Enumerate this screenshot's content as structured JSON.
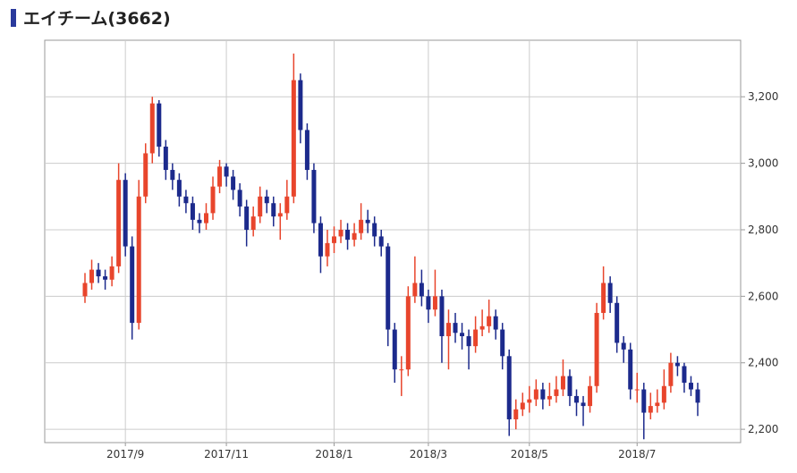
{
  "chart_data": {
    "type": "candlestick",
    "title": "エイチーム(3662)",
    "up_color": "#e8452c",
    "down_color": "#1c2a8c",
    "grid": true,
    "ylim": [
      2160,
      3370
    ],
    "yticks": [
      {
        "value": 2200,
        "label": "2,200"
      },
      {
        "value": 2400,
        "label": "2,400"
      },
      {
        "value": 2600,
        "label": "2,600"
      },
      {
        "value": 2800,
        "label": "2,800"
      },
      {
        "value": 3000,
        "label": "3,000"
      },
      {
        "value": 3200,
        "label": "3,200"
      }
    ],
    "categories": [
      null,
      null,
      null,
      null,
      null,
      null,
      "2017/9",
      null,
      null,
      null,
      null,
      null,
      null,
      null,
      null,
      null,
      null,
      null,
      null,
      null,
      null,
      "2017/11",
      null,
      null,
      null,
      null,
      null,
      null,
      null,
      null,
      null,
      null,
      null,
      null,
      null,
      null,
      null,
      "2018/1",
      null,
      null,
      null,
      null,
      null,
      null,
      null,
      null,
      null,
      null,
      null,
      null,
      null,
      "2018/3",
      null,
      null,
      null,
      null,
      null,
      null,
      null,
      null,
      null,
      null,
      null,
      null,
      null,
      null,
      "2018/5",
      null,
      null,
      null,
      null,
      null,
      null,
      null,
      null,
      null,
      null,
      null,
      null,
      null,
      null,
      null,
      "2018/7",
      null,
      null,
      null,
      null,
      null,
      null,
      null,
      null,
      null
    ],
    "open": [
      2600,
      2640,
      2680,
      2660,
      2650,
      2690,
      2950,
      2750,
      2520,
      2900,
      3030,
      3180,
      3050,
      2980,
      2950,
      2900,
      2880,
      2830,
      2820,
      2850,
      2930,
      2990,
      2960,
      2920,
      2870,
      2800,
      2840,
      2900,
      2880,
      2840,
      2850,
      2900,
      3250,
      3100,
      2980,
      2820,
      2720,
      2760,
      2780,
      2800,
      2770,
      2790,
      2830,
      2820,
      2780,
      2750,
      2500,
      2380,
      2380,
      2600,
      2640,
      2600,
      2560,
      2600,
      2480,
      2520,
      2490,
      2480,
      2450,
      2500,
      2510,
      2540,
      2500,
      2420,
      2230,
      2260,
      2280,
      2290,
      2320,
      2290,
      2300,
      2320,
      2360,
      2300,
      2280,
      2270,
      2330,
      2550,
      2640,
      2580,
      2460,
      2440,
      2320,
      2320,
      2250,
      2270,
      2280,
      2330,
      2400,
      2390,
      2340,
      2320
    ],
    "high": [
      2670,
      2710,
      2700,
      2680,
      2720,
      3000,
      2970,
      2780,
      2950,
      3060,
      3200,
      3190,
      3070,
      3000,
      2970,
      2920,
      2900,
      2850,
      2880,
      2960,
      3010,
      3000,
      2980,
      2940,
      2890,
      2870,
      2930,
      2920,
      2900,
      2880,
      2950,
      3330,
      3270,
      3120,
      3000,
      2840,
      2800,
      2810,
      2830,
      2820,
      2820,
      2880,
      2860,
      2840,
      2800,
      2760,
      2520,
      2420,
      2630,
      2720,
      2680,
      2620,
      2680,
      2620,
      2560,
      2550,
      2520,
      2500,
      2540,
      2560,
      2590,
      2560,
      2520,
      2440,
      2290,
      2310,
      2330,
      2350,
      2340,
      2340,
      2360,
      2410,
      2380,
      2320,
      2300,
      2360,
      2580,
      2690,
      2660,
      2600,
      2480,
      2460,
      2370,
      2340,
      2310,
      2320,
      2380,
      2430,
      2420,
      2400,
      2360,
      2340
    ],
    "low": [
      2580,
      2620,
      2640,
      2620,
      2630,
      2670,
      2720,
      2470,
      2500,
      2880,
      3000,
      3020,
      2950,
      2920,
      2870,
      2850,
      2800,
      2790,
      2800,
      2830,
      2910,
      2930,
      2890,
      2840,
      2750,
      2780,
      2820,
      2850,
      2810,
      2770,
      2830,
      2880,
      3060,
      2950,
      2790,
      2670,
      2690,
      2730,
      2760,
      2740,
      2750,
      2770,
      2790,
      2750,
      2720,
      2450,
      2340,
      2300,
      2360,
      2580,
      2570,
      2520,
      2540,
      2400,
      2380,
      2460,
      2440,
      2380,
      2430,
      2480,
      2490,
      2470,
      2380,
      2180,
      2200,
      2240,
      2250,
      2270,
      2260,
      2270,
      2280,
      2300,
      2270,
      2240,
      2210,
      2250,
      2310,
      2530,
      2550,
      2430,
      2400,
      2290,
      2280,
      2170,
      2230,
      2250,
      2260,
      2310,
      2360,
      2310,
      2300,
      2240
    ],
    "close": [
      2640,
      2680,
      2660,
      2650,
      2690,
      2950,
      2750,
      2520,
      2900,
      3030,
      3180,
      3050,
      2980,
      2950,
      2900,
      2880,
      2830,
      2820,
      2850,
      2930,
      2990,
      2960,
      2920,
      2870,
      2800,
      2840,
      2900,
      2880,
      2840,
      2850,
      2900,
      3250,
      3100,
      2980,
      2820,
      2720,
      2760,
      2780,
      2800,
      2770,
      2790,
      2830,
      2820,
      2780,
      2750,
      2500,
      2380,
      2380,
      2600,
      2640,
      2600,
      2560,
      2600,
      2480,
      2520,
      2490,
      2480,
      2450,
      2500,
      2510,
      2540,
      2500,
      2420,
      2230,
      2260,
      2280,
      2290,
      2320,
      2290,
      2300,
      2320,
      2360,
      2300,
      2280,
      2270,
      2330,
      2550,
      2640,
      2580,
      2460,
      2440,
      2320,
      2320,
      2250,
      2270,
      2280,
      2330,
      2400,
      2390,
      2340,
      2320,
      2280
    ]
  }
}
